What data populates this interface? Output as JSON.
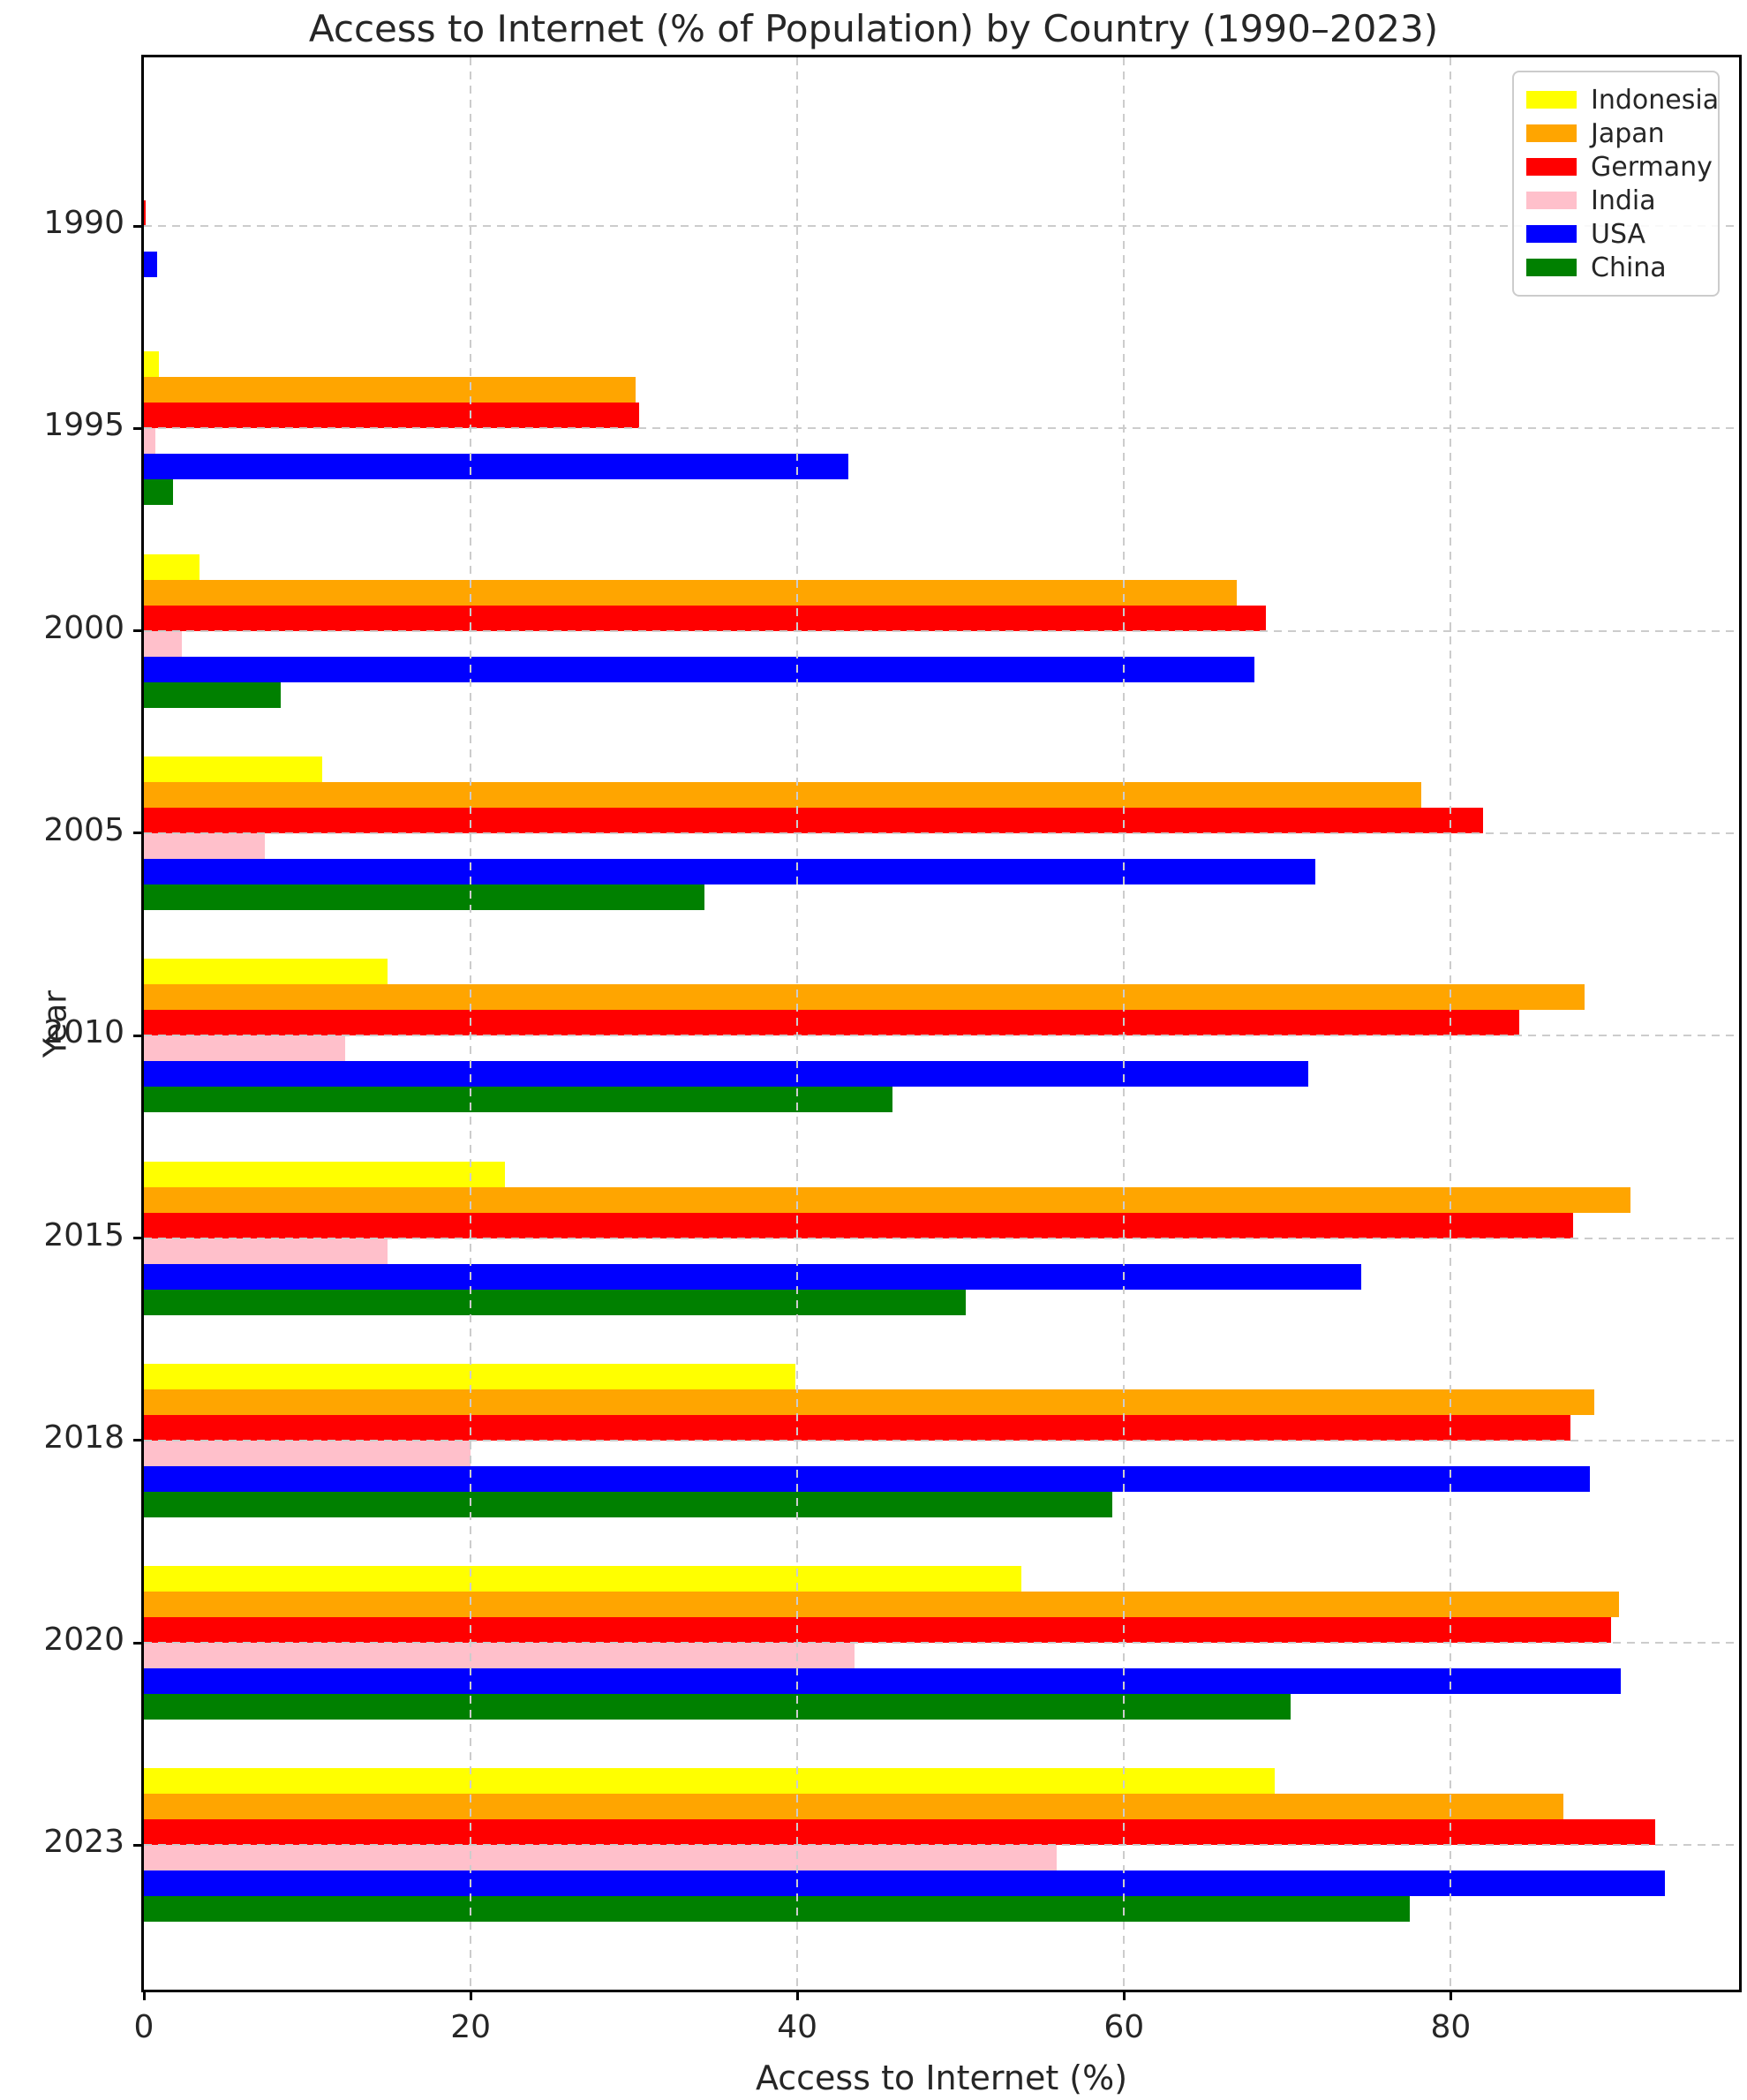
{
  "title": "Access to Internet (% of Population) by Country (1990–2023)",
  "chart_data": {
    "type": "bar",
    "orientation": "horizontal",
    "title": "Access to Internet (% of Population) by Country (1990–2023)",
    "xlabel": "Access to Internet (%)",
    "ylabel": "Year",
    "categories": [
      "1990",
      "1995",
      "2000",
      "2005",
      "2010",
      "2015",
      "2018",
      "2020",
      "2023"
    ],
    "series": [
      {
        "name": "Indonesia",
        "color": "#ffff00",
        "values": [
          0,
          0.9,
          3.4,
          10.9,
          14.9,
          22.1,
          39.9,
          53.7,
          69.2
        ]
      },
      {
        "name": "Japan",
        "color": "#ffa500",
        "values": [
          0,
          30.1,
          66.9,
          78.2,
          88.2,
          91.0,
          88.8,
          90.3,
          86.9
        ]
      },
      {
        "name": "Germany",
        "color": "#ff0000",
        "values": [
          0.1,
          30.3,
          68.7,
          82.0,
          84.2,
          87.5,
          87.3,
          89.8,
          92.5
        ]
      },
      {
        "name": "India",
        "color": "#ffc0cb",
        "values": [
          0,
          0.7,
          2.3,
          7.4,
          12.3,
          14.9,
          20.0,
          43.5,
          55.9
        ]
      },
      {
        "name": "USA",
        "color": "#0000ff",
        "values": [
          0.8,
          43.1,
          68.0,
          71.7,
          71.3,
          74.5,
          88.5,
          90.4,
          93.1
        ]
      },
      {
        "name": "China",
        "color": "#008000",
        "values": [
          0,
          1.8,
          8.4,
          34.3,
          45.8,
          50.3,
          59.3,
          70.2,
          77.5
        ]
      }
    ],
    "xlim": [
      0,
      97.65
    ],
    "xticks": [
      0,
      20,
      40,
      60,
      80
    ],
    "grid": "dashed",
    "grid_color": "#cccccc",
    "legend_position": "upper right",
    "axis_color": "#000000",
    "text_color": "#262626"
  }
}
